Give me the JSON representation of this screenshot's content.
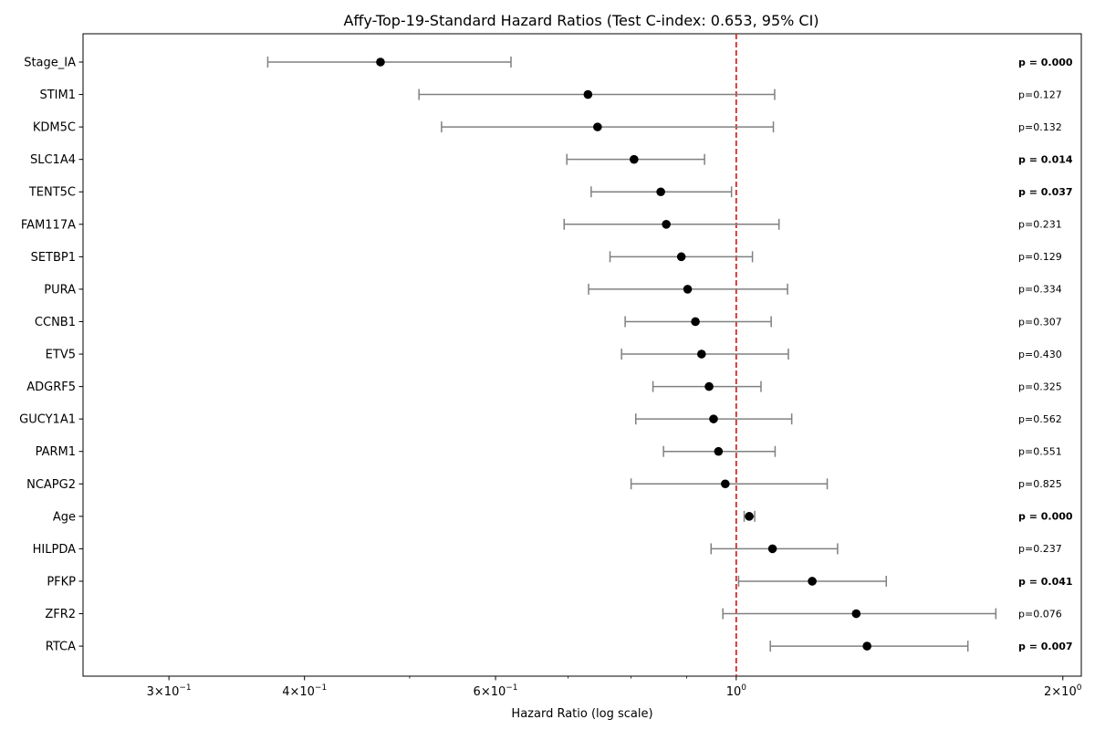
{
  "chart_data": {
    "type": "scatter",
    "title": "Affy-Top-19-Standard Hazard Ratios (Test C-index: 0.653, 95% CI)",
    "xlabel": "Hazard Ratio (log scale)",
    "ylabel": "",
    "x_scale": "log",
    "xlim": [
      0.25,
      2.08
    ],
    "x_ticks": [
      {
        "value": 0.3,
        "base": "3×10",
        "exp": "−1"
      },
      {
        "value": 0.4,
        "base": "4×10",
        "exp": "−1"
      },
      {
        "value": 0.6,
        "base": "6×10",
        "exp": "−1"
      },
      {
        "value": 1.0,
        "base": "10",
        "exp": "0"
      },
      {
        "value": 2.0,
        "base": "2×10",
        "exp": "0"
      }
    ],
    "reference_line": {
      "x": 1.0,
      "color": "#d62728",
      "style": "dashed"
    },
    "marker_color": "#000000",
    "ci_color": "#808080",
    "grid": false,
    "rows": [
      {
        "label": "Stage_IA",
        "hr": 0.47,
        "lo": 0.37,
        "hi": 0.62,
        "p": "p = 0.000",
        "sig": true
      },
      {
        "label": "STIM1",
        "hr": 0.73,
        "lo": 0.51,
        "hi": 1.085,
        "p": "p=0.127",
        "sig": false
      },
      {
        "label": "KDM5C",
        "hr": 0.745,
        "lo": 0.535,
        "hi": 1.082,
        "p": "p=0.132",
        "sig": false
      },
      {
        "label": "SLC1A4",
        "hr": 0.805,
        "lo": 0.698,
        "hi": 0.935,
        "p": "p = 0.014",
        "sig": true
      },
      {
        "label": "TENT5C",
        "hr": 0.852,
        "lo": 0.735,
        "hi": 0.99,
        "p": "p = 0.037",
        "sig": true
      },
      {
        "label": "FAM117A",
        "hr": 0.862,
        "lo": 0.694,
        "hi": 1.095,
        "p": "p=0.231",
        "sig": false
      },
      {
        "label": "SETBP1",
        "hr": 0.89,
        "lo": 0.765,
        "hi": 1.035,
        "p": "p=0.129",
        "sig": false
      },
      {
        "label": "PURA",
        "hr": 0.902,
        "lo": 0.731,
        "hi": 1.115,
        "p": "p=0.334",
        "sig": false
      },
      {
        "label": "CCNB1",
        "hr": 0.917,
        "lo": 0.79,
        "hi": 1.077,
        "p": "p=0.307",
        "sig": false
      },
      {
        "label": "ETV5",
        "hr": 0.929,
        "lo": 0.784,
        "hi": 1.117,
        "p": "p=0.430",
        "sig": false
      },
      {
        "label": "ADGRF5",
        "hr": 0.944,
        "lo": 0.838,
        "hi": 1.054,
        "p": "p=0.325",
        "sig": false
      },
      {
        "label": "GUCY1A1",
        "hr": 0.953,
        "lo": 0.808,
        "hi": 1.125,
        "p": "p=0.562",
        "sig": false
      },
      {
        "label": "PARM1",
        "hr": 0.963,
        "lo": 0.857,
        "hi": 1.086,
        "p": "p=0.551",
        "sig": false
      },
      {
        "label": "NCAPG2",
        "hr": 0.977,
        "lo": 0.8,
        "hi": 1.213,
        "p": "p=0.825",
        "sig": false
      },
      {
        "label": "Age",
        "hr": 1.028,
        "lo": 1.017,
        "hi": 1.04,
        "p": "p = 0.000",
        "sig": true
      },
      {
        "label": "HILPDA",
        "hr": 1.08,
        "lo": 0.948,
        "hi": 1.24,
        "p": "p=0.237",
        "sig": false
      },
      {
        "label": "PFKP",
        "hr": 1.175,
        "lo": 1.005,
        "hi": 1.375,
        "p": "p = 0.041",
        "sig": true
      },
      {
        "label": "ZFR2",
        "hr": 1.29,
        "lo": 0.972,
        "hi": 1.735,
        "p": "p=0.076",
        "sig": false
      },
      {
        "label": "RTCA",
        "hr": 1.32,
        "lo": 1.075,
        "hi": 1.635,
        "p": "p = 0.007",
        "sig": true
      }
    ]
  }
}
